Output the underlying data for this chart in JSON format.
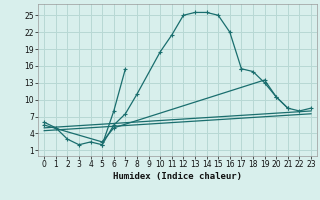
{
  "xlabel": "Humidex (Indice chaleur)",
  "background_color": "#d8efec",
  "grid_color": "#b8d8d4",
  "line_color": "#1a6e6e",
  "xlim": [
    -0.5,
    23.5
  ],
  "ylim": [
    0,
    27
  ],
  "xticks": [
    0,
    1,
    2,
    3,
    4,
    5,
    6,
    7,
    8,
    9,
    10,
    11,
    12,
    13,
    14,
    15,
    16,
    17,
    18,
    19,
    20,
    21,
    22,
    23
  ],
  "yticks": [
    1,
    4,
    7,
    10,
    13,
    16,
    19,
    22,
    25
  ],
  "main_curve": {
    "x": [
      0,
      1,
      2,
      3,
      4,
      5,
      6,
      7,
      8,
      10,
      11,
      12,
      13,
      14,
      15,
      16,
      17
    ],
    "y": [
      6,
      5,
      3,
      2,
      2.5,
      2,
      5.5,
      7.5,
      11,
      18.5,
      21.5,
      25,
      25.5,
      25.5,
      25,
      22,
      15.5
    ]
  },
  "spike_curve": {
    "x": [
      5,
      6,
      7
    ],
    "y": [
      2,
      8,
      15.5
    ]
  },
  "drop_curve": {
    "x": [
      17,
      18,
      19,
      20,
      21
    ],
    "y": [
      15.5,
      15,
      13,
      10.5,
      8.5
    ]
  },
  "line1": {
    "x": [
      0,
      23
    ],
    "y": [
      5,
      8
    ]
  },
  "line2": {
    "x": [
      0,
      23
    ],
    "y": [
      4.5,
      7.5
    ]
  },
  "line3": {
    "x": [
      0,
      5,
      6,
      19,
      20,
      21,
      22,
      23
    ],
    "y": [
      5.5,
      2.5,
      5,
      13.5,
      10.5,
      8.5,
      8.0,
      8.5
    ]
  }
}
